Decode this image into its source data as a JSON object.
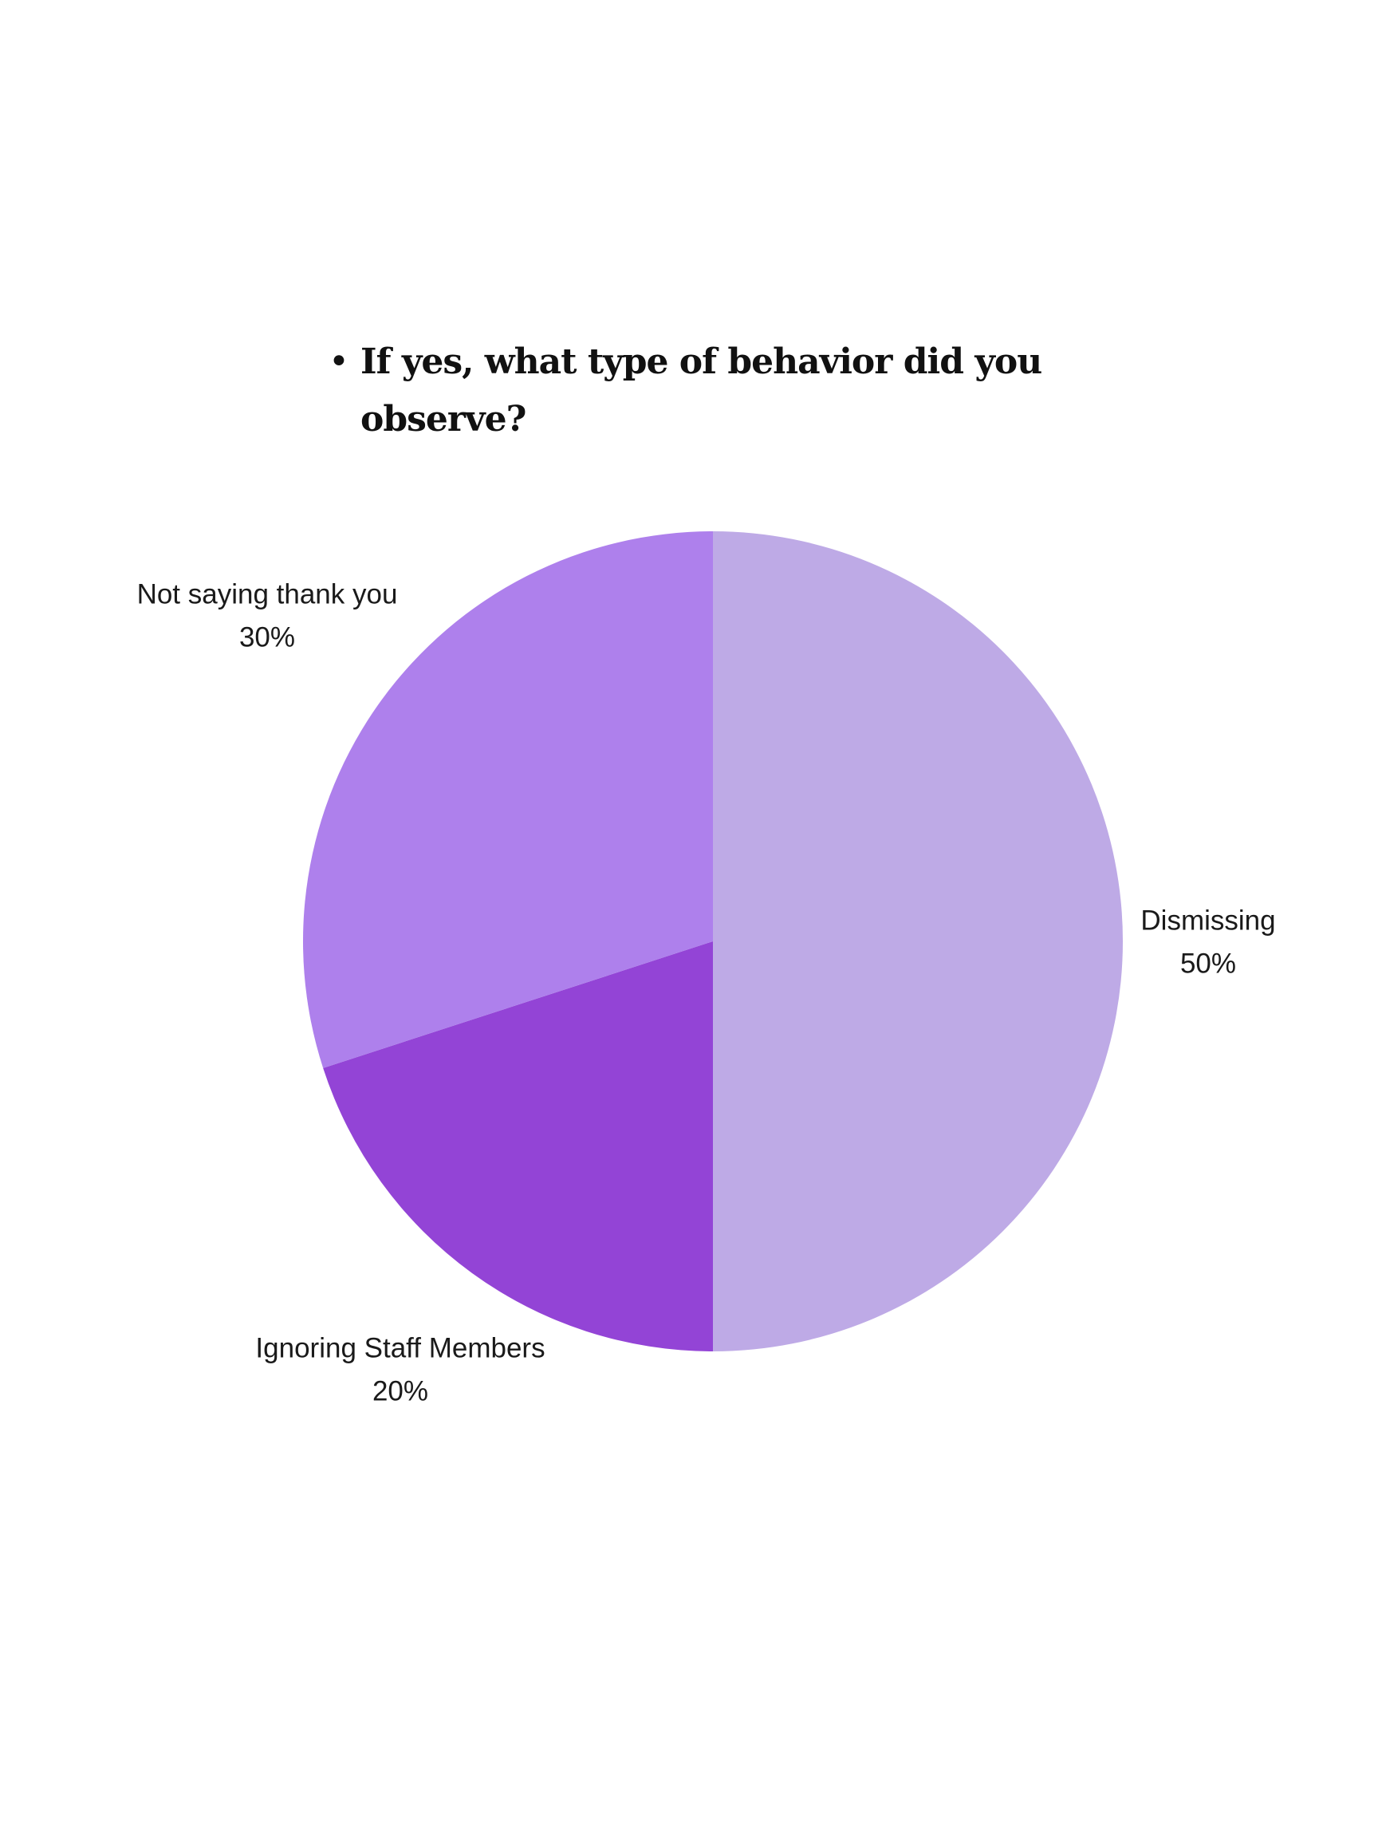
{
  "chart_data": {
    "type": "pie",
    "title": "If yes, what type of behavior did you observe?",
    "slices": [
      {
        "label": "Dismissing",
        "value": 50,
        "value_label": "50%",
        "color": "#BEAAE6"
      },
      {
        "label": "Ignoring Staff Members",
        "value": 20,
        "value_label": "20%",
        "color": "#9344D6"
      },
      {
        "label": "Not saying thank you",
        "value": 30,
        "value_label": "30%",
        "color": "#AE80EC"
      }
    ],
    "start_angle": "top",
    "direction": "clockwise"
  }
}
